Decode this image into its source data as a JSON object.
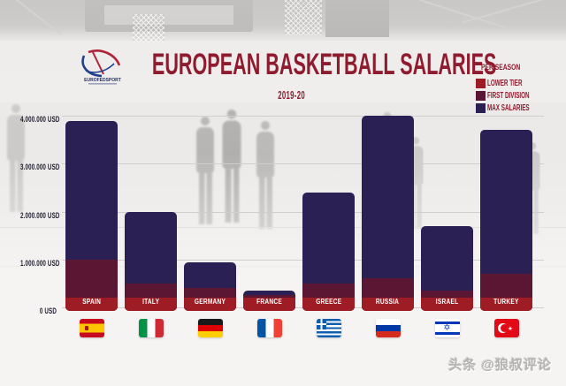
{
  "header": {
    "title": "EUROPEAN BASKETBALL SALARIES",
    "subtitle": "2019-20",
    "logo_text": "EUROFEDSPORT"
  },
  "colors": {
    "title_red": "#8e1c2e",
    "axis_label": "#1e1e30",
    "bar_label": "#ffffff",
    "max_salaries_navy": "#2a2053",
    "first_division_maroon": "#5a1632",
    "lower_tier_red": "#9e1c23"
  },
  "legend": {
    "heading": "PER SEASON",
    "items": [
      {
        "label": "LOWER TIER",
        "color": "#9e1c23"
      },
      {
        "label": "FIRST DIVISION",
        "color": "#5a1632"
      },
      {
        "label": "MAX SALARIES",
        "color": "#2a2053"
      }
    ]
  },
  "chart_data": {
    "type": "bar",
    "title": "EUROPEAN BASKETBALL SALARIES",
    "subtitle": "2019-20",
    "unit": "USD per season",
    "categories": [
      "SPAIN",
      "ITALY",
      "GERMANY",
      "FRANCE",
      "GREECE",
      "RUSSIA",
      "ISRAEL",
      "TURKEY"
    ],
    "series": [
      {
        "name": "MAX SALARIES",
        "color": "#2a2053",
        "values": [
          3900000,
          2000000,
          950000,
          350000,
          2400000,
          4000000,
          1700000,
          3700000
        ]
      },
      {
        "name": "FIRST DIVISION",
        "color": "#5a1632",
        "values": [
          1000000,
          500000,
          400000,
          250000,
          500000,
          600000,
          350000,
          700000
        ]
      },
      {
        "name": "LOWER TIER",
        "color": "#9e1c23",
        "values": [
          200000,
          200000,
          200000,
          200000,
          200000,
          200000,
          200000,
          200000
        ]
      }
    ],
    "ylim": [
      0,
      4000000
    ],
    "yticks": [
      {
        "value": 4000000,
        "label": "4.000.000 USD"
      },
      {
        "value": 3000000,
        "label": "3.000.000 USD"
      },
      {
        "value": 2000000,
        "label": "2.000.000 USD"
      },
      {
        "value": 1000000,
        "label": "1.000.000 USD"
      },
      {
        "value": 0,
        "label": "0 USD"
      }
    ],
    "grid": true,
    "legend_position": "top-right",
    "note": "segments overlap from a shared baseline; each value is the top of its colored segment"
  },
  "flags": [
    {
      "country": "SPAIN",
      "type": "h",
      "stripes": [
        [
          "#c60b1e",
          0.25
        ],
        [
          "#ffc400",
          0.5
        ],
        [
          "#c60b1e",
          0.25
        ]
      ],
      "emblem": "spain-crest"
    },
    {
      "country": "ITALY",
      "type": "v",
      "stripes": [
        [
          "#009246",
          0.333
        ],
        [
          "#ffffff",
          0.334
        ],
        [
          "#ce2b37",
          0.333
        ]
      ]
    },
    {
      "country": "GERMANY",
      "type": "h",
      "stripes": [
        [
          "#1a1a1a",
          0.333
        ],
        [
          "#dd0000",
          0.334
        ],
        [
          "#ffce00",
          0.333
        ]
      ]
    },
    {
      "country": "FRANCE",
      "type": "v",
      "stripes": [
        [
          "#0055a4",
          0.333
        ],
        [
          "#ffffff",
          0.334
        ],
        [
          "#ef4135",
          0.333
        ]
      ]
    },
    {
      "country": "GREECE",
      "type": "greece",
      "colors": {
        "blue": "#0d5eaf",
        "white": "#ffffff"
      }
    },
    {
      "country": "RUSSIA",
      "type": "h",
      "stripes": [
        [
          "#ffffff",
          0.333
        ],
        [
          "#0039a6",
          0.334
        ],
        [
          "#d52b1e",
          0.333
        ]
      ]
    },
    {
      "country": "ISRAEL",
      "type": "israel",
      "colors": {
        "blue": "#0038b8",
        "white": "#ffffff"
      }
    },
    {
      "country": "TURKEY",
      "type": "turkey",
      "colors": {
        "red": "#e30a17",
        "white": "#ffffff"
      }
    }
  ],
  "watermark": {
    "text": "头条 @狼叔评论"
  }
}
